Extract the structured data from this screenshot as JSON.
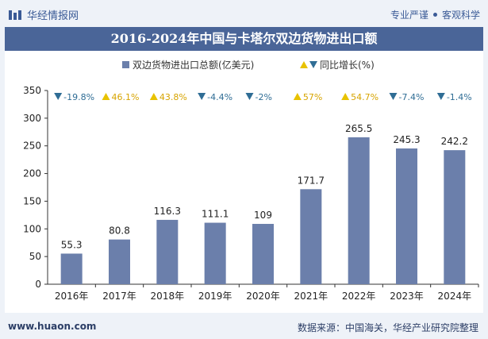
{
  "header": {
    "brand": "华经情报网",
    "tagline_left": "专业严谨",
    "tagline_right": "客观科学"
  },
  "title": "2016-2024年中国与卡塔尔双边货物进出口额",
  "footer": {
    "website": "www.huaon.com",
    "source": "数据来源：中国海关，华经产业研究院整理"
  },
  "colors": {
    "bar": "#6b7fab",
    "up": "#e8c200",
    "down": "#2f6d95",
    "title_bg": "#4a6598"
  },
  "chart_data": {
    "type": "bar",
    "categories": [
      "2016年",
      "2017年",
      "2018年",
      "2019年",
      "2020年",
      "2021年",
      "2022年",
      "2023年",
      "2024年"
    ],
    "series": [
      {
        "name": "双边货物进出口总额(亿美元)",
        "values": [
          55.3,
          80.8,
          116.3,
          111.1,
          109,
          171.7,
          265.5,
          245.3,
          242.2
        ]
      },
      {
        "name": "同比增长(%)",
        "values": [
          -19.8,
          46.1,
          43.8,
          -4.4,
          -2,
          57,
          54.7,
          -7.4,
          -1.4
        ]
      }
    ],
    "growth_labels": [
      "-19.8%",
      "46.1%",
      "43.8%",
      "-4.4%",
      "-2%",
      "57%",
      "54.7%",
      "-7.4%",
      "-1.4%"
    ],
    "value_labels": [
      "55.3",
      "80.8",
      "116.3",
      "111.1",
      "109",
      "171.7",
      "265.5",
      "245.3",
      "242.2"
    ],
    "y_ticks": [
      "0",
      "50",
      "100",
      "150",
      "200",
      "250",
      "300",
      "350"
    ],
    "ylim": [
      0,
      350
    ],
    "legend_position": "top",
    "grid": false
  }
}
